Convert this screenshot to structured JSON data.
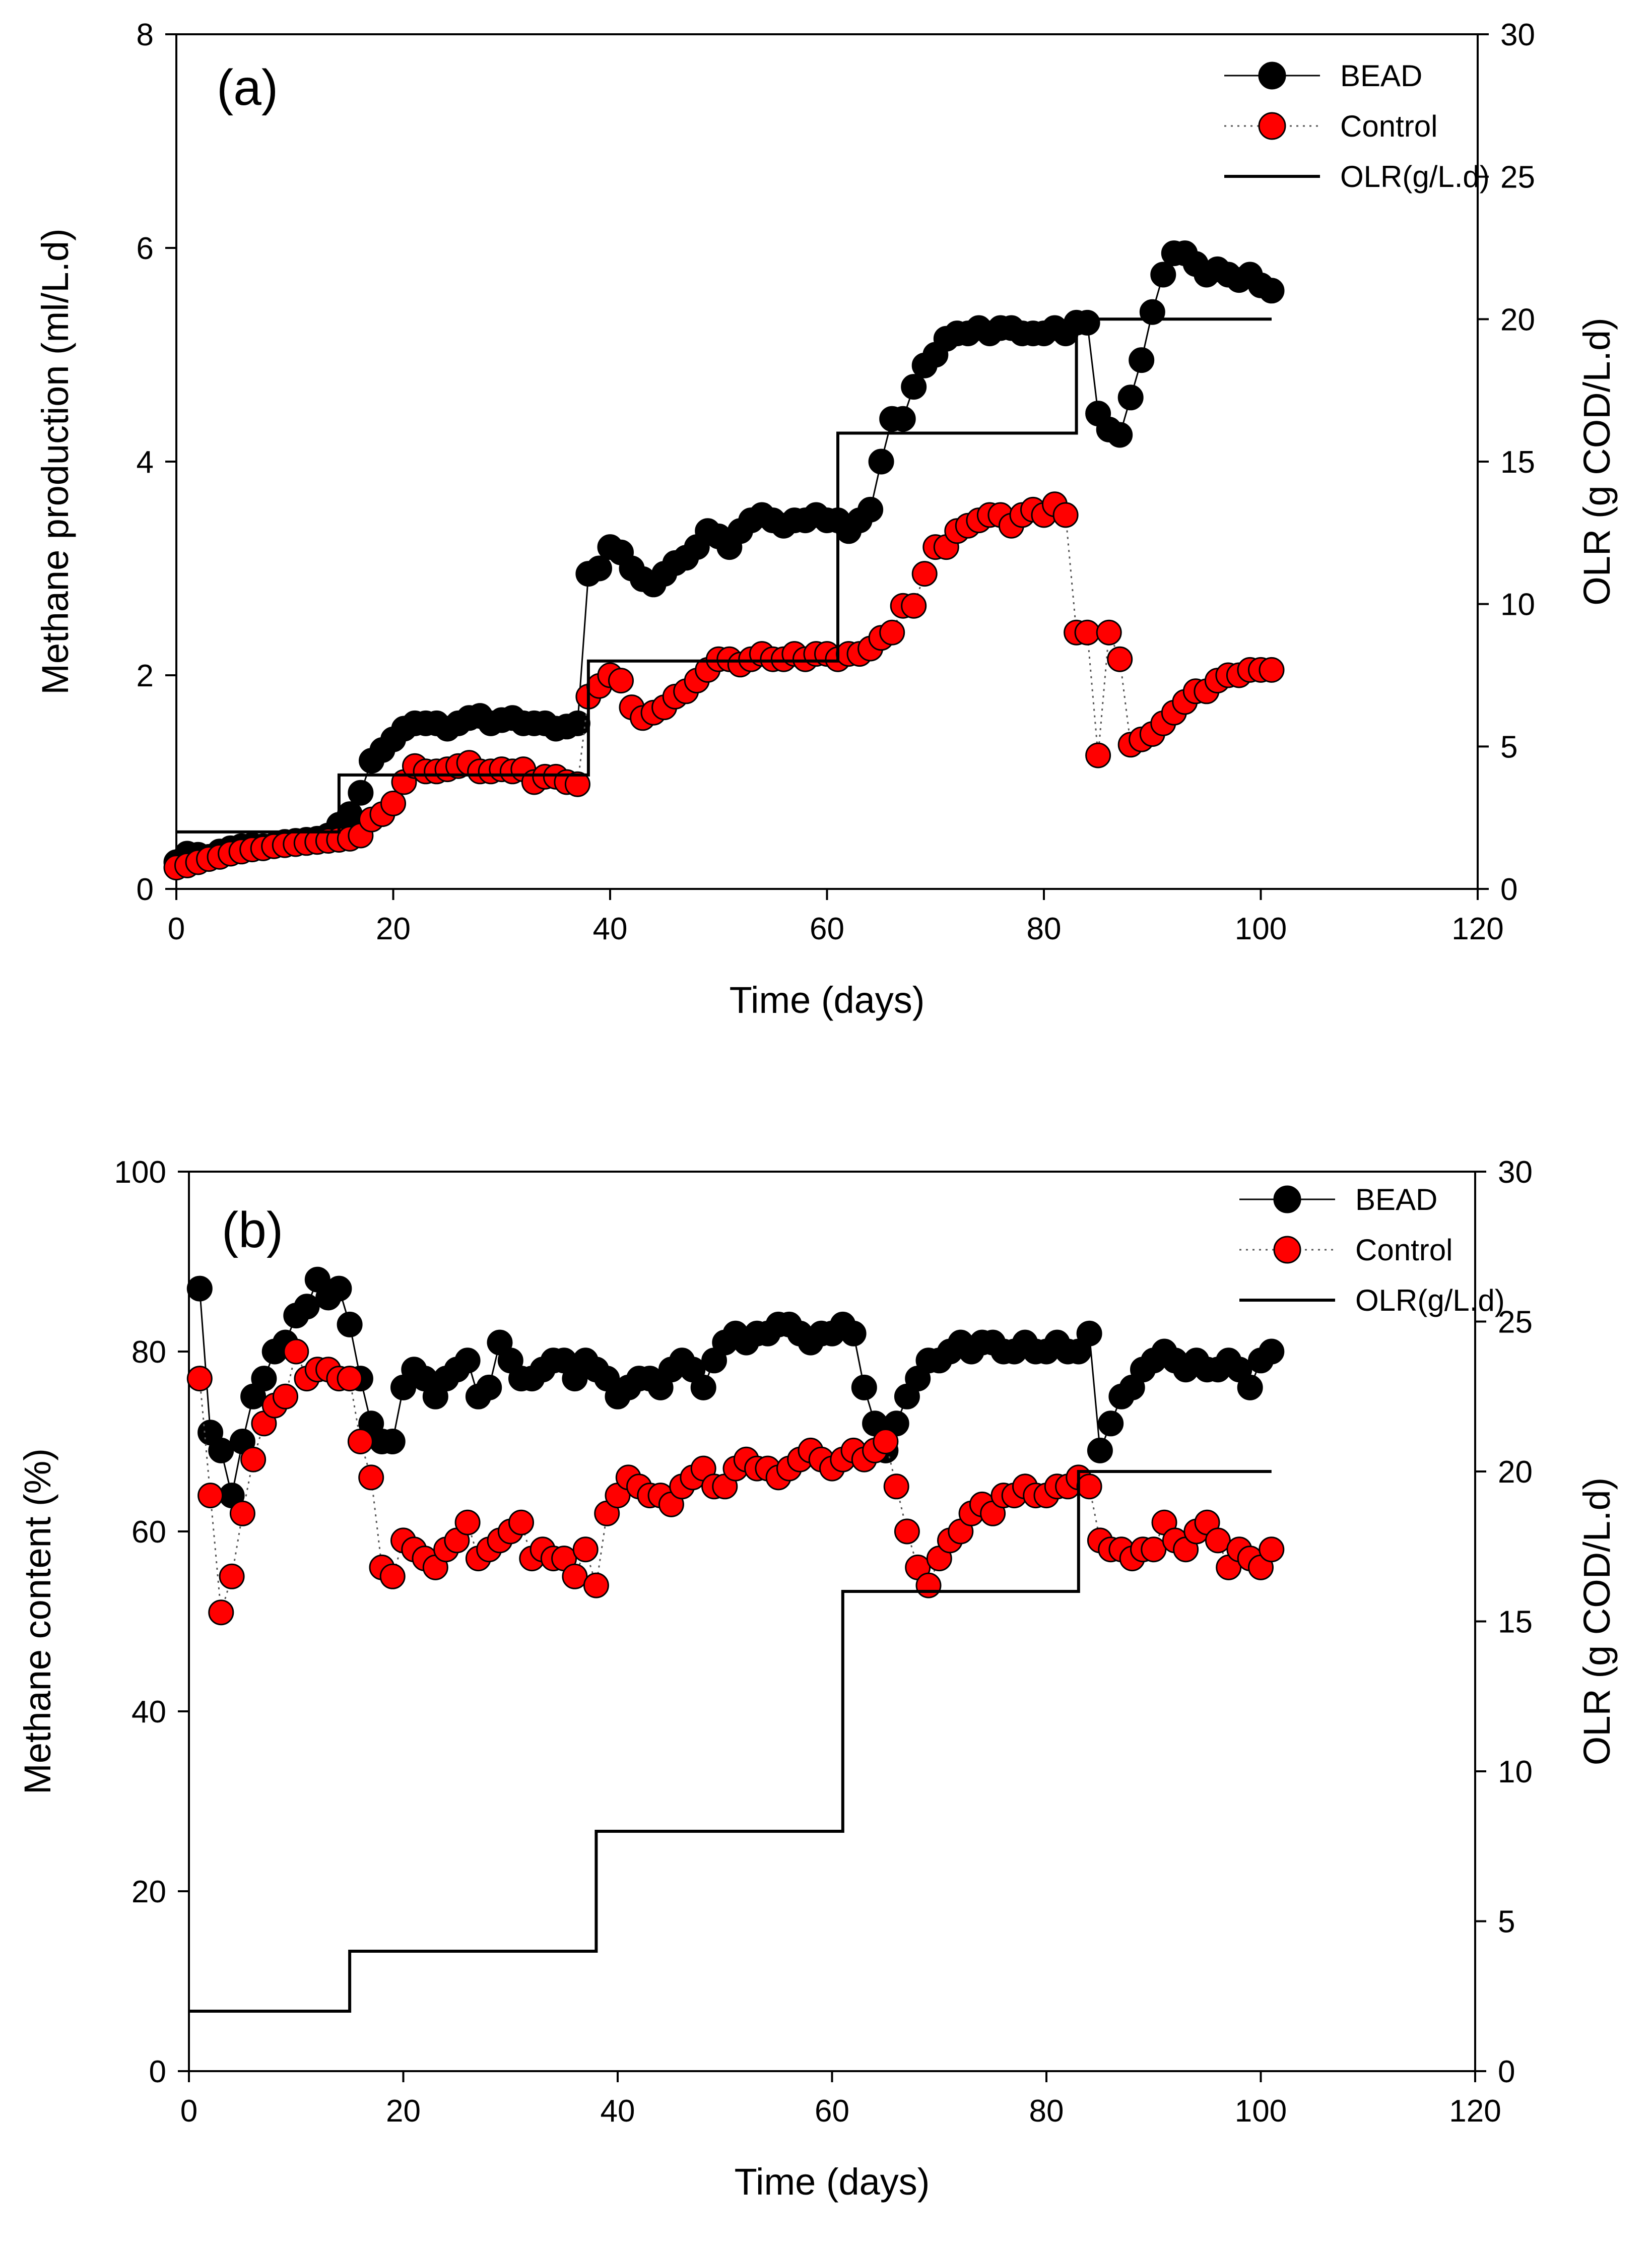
{
  "chart_data": [
    {
      "type": "line",
      "panel_label": "(a)",
      "xlabel": "Time (days)",
      "ylabel": "Methane production (ml/L.d)",
      "y2label": "OLR (g COD/L.d)",
      "xlim": [
        0,
        120
      ],
      "ylim": [
        0,
        8
      ],
      "y2lim": [
        0,
        30
      ],
      "xticks": [
        "0",
        "20",
        "40",
        "60",
        "80",
        "100",
        "120"
      ],
      "yticks": [
        "0",
        "2",
        "4",
        "6",
        "8"
      ],
      "y2ticks": [
        "0",
        "5",
        "10",
        "15",
        "20",
        "25",
        "30"
      ],
      "grid": false,
      "legend_position": "top-right",
      "series": [
        {
          "name": "BEAD",
          "axis": "left",
          "color": "#000000",
          "marker": "circle",
          "line": "solid",
          "x": [
            0,
            1,
            2,
            3,
            4,
            5,
            6,
            7,
            8,
            9,
            10,
            11,
            12,
            13,
            14,
            15,
            16,
            17,
            18,
            19,
            20,
            21,
            22,
            23,
            24,
            25,
            26,
            27,
            28,
            29,
            30,
            31,
            32,
            33,
            34,
            35,
            36,
            37,
            38,
            39,
            40,
            41,
            42,
            43,
            44,
            45,
            46,
            47,
            48,
            49,
            50,
            51,
            52,
            53,
            54,
            55,
            56,
            57,
            58,
            59,
            60,
            61,
            62,
            63,
            64,
            65,
            66,
            67,
            68,
            69,
            70,
            71,
            72,
            73,
            74,
            75,
            76,
            77,
            78,
            79,
            80,
            81,
            82,
            83,
            84,
            85,
            86,
            87,
            88,
            89,
            90,
            91,
            92,
            93,
            94,
            95,
            96,
            97,
            98,
            99,
            100,
            101
          ],
          "values": [
            0.25,
            0.33,
            0.32,
            0.3,
            0.35,
            0.38,
            0.4,
            0.41,
            0.4,
            0.41,
            0.44,
            0.45,
            0.46,
            0.47,
            0.5,
            0.6,
            0.7,
            0.9,
            1.2,
            1.3,
            1.4,
            1.5,
            1.55,
            1.55,
            1.55,
            1.5,
            1.55,
            1.6,
            1.62,
            1.55,
            1.58,
            1.6,
            1.55,
            1.55,
            1.55,
            1.5,
            1.52,
            1.55,
            2.95,
            3.0,
            3.2,
            3.15,
            3.0,
            2.9,
            2.85,
            2.95,
            3.05,
            3.1,
            3.2,
            3.35,
            3.3,
            3.2,
            3.35,
            3.45,
            3.5,
            3.45,
            3.4,
            3.45,
            3.45,
            3.5,
            3.45,
            3.45,
            3.35,
            3.45,
            3.55,
            4.0,
            4.4,
            4.4,
            4.7,
            4.9,
            5.0,
            5.15,
            5.2,
            5.2,
            5.25,
            5.2,
            5.25,
            5.25,
            5.2,
            5.2,
            5.2,
            5.25,
            5.2,
            5.3,
            5.3,
            4.45,
            4.3,
            4.25,
            4.6,
            4.95,
            5.4,
            5.75,
            5.95,
            5.95,
            5.85,
            5.75,
            5.8,
            5.75,
            5.7,
            5.75,
            5.65,
            5.6
          ],
          "ylabel_series": ""
        },
        {
          "name": "Control",
          "axis": "left",
          "color": "#ff0000",
          "marker": "circle",
          "line": "dotted",
          "x": [
            0,
            1,
            2,
            3,
            4,
            5,
            6,
            7,
            8,
            9,
            10,
            11,
            12,
            13,
            14,
            15,
            16,
            17,
            18,
            19,
            20,
            21,
            22,
            23,
            24,
            25,
            26,
            27,
            28,
            29,
            30,
            31,
            32,
            33,
            34,
            35,
            36,
            37,
            38,
            39,
            40,
            41,
            42,
            43,
            44,
            45,
            46,
            47,
            48,
            49,
            50,
            51,
            52,
            53,
            54,
            55,
            56,
            57,
            58,
            59,
            60,
            61,
            62,
            63,
            64,
            65,
            66,
            67,
            68,
            69,
            70,
            71,
            72,
            73,
            74,
            75,
            76,
            77,
            78,
            79,
            80,
            81,
            82,
            83,
            84,
            85,
            86,
            87,
            88,
            89,
            90,
            91,
            92,
            93,
            94,
            95,
            96,
            97,
            98,
            99,
            100,
            101
          ],
          "values": [
            0.2,
            0.22,
            0.25,
            0.28,
            0.3,
            0.33,
            0.35,
            0.37,
            0.38,
            0.4,
            0.41,
            0.42,
            0.43,
            0.44,
            0.45,
            0.46,
            0.47,
            0.5,
            0.65,
            0.7,
            0.8,
            1.0,
            1.15,
            1.1,
            1.1,
            1.12,
            1.15,
            1.18,
            1.1,
            1.1,
            1.12,
            1.1,
            1.12,
            1.0,
            1.05,
            1.05,
            1.0,
            0.98,
            1.8,
            1.9,
            2.0,
            1.95,
            1.7,
            1.6,
            1.65,
            1.7,
            1.8,
            1.85,
            1.95,
            2.05,
            2.15,
            2.15,
            2.1,
            2.15,
            2.2,
            2.15,
            2.15,
            2.2,
            2.15,
            2.2,
            2.2,
            2.15,
            2.2,
            2.2,
            2.25,
            2.35,
            2.4,
            2.65,
            2.65,
            2.95,
            3.2,
            3.2,
            3.35,
            3.4,
            3.45,
            3.5,
            3.5,
            3.4,
            3.5,
            3.55,
            3.5,
            3.6,
            3.5,
            2.4,
            2.4,
            1.25,
            2.4,
            2.15,
            1.35,
            1.4,
            1.45,
            1.55,
            1.65,
            1.75,
            1.85,
            1.85,
            1.95,
            2.0,
            2.0,
            2.05,
            2.05,
            2.05
          ]
        },
        {
          "name": "OLR(g/L.d)",
          "axis": "right",
          "color": "#000000",
          "marker": "none",
          "line": "solid",
          "x": [
            0,
            15,
            15,
            38,
            38,
            61,
            61,
            83,
            83,
            101
          ],
          "values": [
            2,
            2,
            4,
            4,
            8,
            8,
            16,
            16,
            20,
            20
          ]
        }
      ]
    },
    {
      "type": "line",
      "panel_label": "(b)",
      "xlabel": "Time (days)",
      "ylabel": "Methane content (%)",
      "y2label": "OLR (g COD/L.d)",
      "xlim": [
        0,
        120
      ],
      "ylim": [
        0,
        100
      ],
      "y2lim": [
        0,
        30
      ],
      "xticks": [
        "0",
        "20",
        "40",
        "60",
        "80",
        "100",
        "120"
      ],
      "yticks": [
        "0",
        "20",
        "40",
        "60",
        "80",
        "100"
      ],
      "y2ticks": [
        "0",
        "5",
        "10",
        "15",
        "20",
        "25",
        "30"
      ],
      "grid": false,
      "legend_position": "top-right",
      "series": [
        {
          "name": "BEAD",
          "axis": "left",
          "color": "#000000",
          "marker": "circle",
          "line": "solid",
          "x": [
            1,
            2,
            3,
            4,
            5,
            6,
            7,
            8,
            9,
            10,
            11,
            12,
            13,
            14,
            15,
            16,
            17,
            18,
            19,
            20,
            21,
            22,
            23,
            24,
            25,
            26,
            27,
            28,
            29,
            30,
            31,
            32,
            33,
            34,
            35,
            36,
            37,
            38,
            39,
            40,
            41,
            42,
            43,
            44,
            45,
            46,
            47,
            48,
            49,
            50,
            51,
            52,
            53,
            54,
            55,
            56,
            57,
            58,
            59,
            60,
            61,
            62,
            63,
            64,
            65,
            66,
            67,
            68,
            69,
            70,
            71,
            72,
            73,
            74,
            75,
            76,
            77,
            78,
            79,
            80,
            81,
            82,
            83,
            84,
            85,
            86,
            87,
            88,
            89,
            90,
            91,
            92,
            93,
            94,
            95,
            96,
            97,
            98,
            99,
            100,
            101
          ],
          "values": [
            87,
            71,
            69,
            64,
            70,
            75,
            77,
            80,
            81,
            84,
            85,
            88,
            86,
            87,
            83,
            77,
            72,
            70,
            70,
            76,
            78,
            77,
            75,
            77,
            78,
            79,
            75,
            76,
            81,
            79,
            77,
            77,
            78,
            79,
            79,
            77,
            79,
            78,
            77,
            75,
            76,
            77,
            77,
            76,
            78,
            79,
            78,
            76,
            79,
            81,
            82,
            81,
            82,
            82,
            83,
            83,
            82,
            81,
            82,
            82,
            83,
            82,
            76,
            72,
            69,
            72,
            75,
            77,
            79,
            79,
            80,
            81,
            80,
            81,
            81,
            80,
            80,
            81,
            80,
            80,
            81,
            80,
            80,
            82,
            69,
            72,
            75,
            76,
            78,
            79,
            80,
            79,
            78,
            79,
            78,
            78,
            79,
            78,
            76,
            79,
            80
          ]
        },
        {
          "name": "Control",
          "axis": "left",
          "color": "#ff0000",
          "marker": "circle",
          "line": "dotted",
          "x": [
            1,
            2,
            3,
            4,
            5,
            6,
            7,
            8,
            9,
            10,
            11,
            12,
            13,
            14,
            15,
            16,
            17,
            18,
            19,
            20,
            21,
            22,
            23,
            24,
            25,
            26,
            27,
            28,
            29,
            30,
            31,
            32,
            33,
            34,
            35,
            36,
            37,
            38,
            39,
            40,
            41,
            42,
            43,
            44,
            45,
            46,
            47,
            48,
            49,
            50,
            51,
            52,
            53,
            54,
            55,
            56,
            57,
            58,
            59,
            60,
            61,
            62,
            63,
            64,
            65,
            66,
            67,
            68,
            69,
            70,
            71,
            72,
            73,
            74,
            75,
            76,
            77,
            78,
            79,
            80,
            81,
            82,
            83,
            84,
            85,
            86,
            87,
            88,
            89,
            90,
            91,
            92,
            93,
            94,
            95,
            96,
            97,
            98,
            99,
            100,
            101
          ],
          "values": [
            77,
            64,
            51,
            55,
            62,
            68,
            72,
            74,
            75,
            80,
            77,
            78,
            78,
            77,
            77,
            70,
            66,
            56,
            55,
            59,
            58,
            57,
            56,
            58,
            59,
            61,
            57,
            58,
            59,
            60,
            61,
            57,
            58,
            57,
            57,
            55,
            58,
            54,
            62,
            64,
            66,
            65,
            64,
            64,
            63,
            65,
            66,
            67,
            65,
            65,
            67,
            68,
            67,
            67,
            66,
            67,
            68,
            69,
            68,
            67,
            68,
            69,
            68,
            69,
            70,
            65,
            60,
            56,
            54,
            57,
            59,
            60,
            62,
            63,
            62,
            64,
            64,
            65,
            64,
            64,
            65,
            65,
            66,
            65,
            59,
            58,
            58,
            57,
            58,
            58,
            61,
            59,
            58,
            60,
            61,
            59,
            56,
            58,
            57,
            56,
            58
          ]
        },
        {
          "name": "OLR(g/L.d)",
          "axis": "right",
          "color": "#000000",
          "marker": "none",
          "line": "solid",
          "x": [
            0,
            15,
            15,
            38,
            38,
            61,
            61,
            83,
            83,
            101
          ],
          "values": [
            2,
            2,
            4,
            4,
            8,
            8,
            16,
            16,
            20,
            20
          ]
        }
      ]
    }
  ]
}
